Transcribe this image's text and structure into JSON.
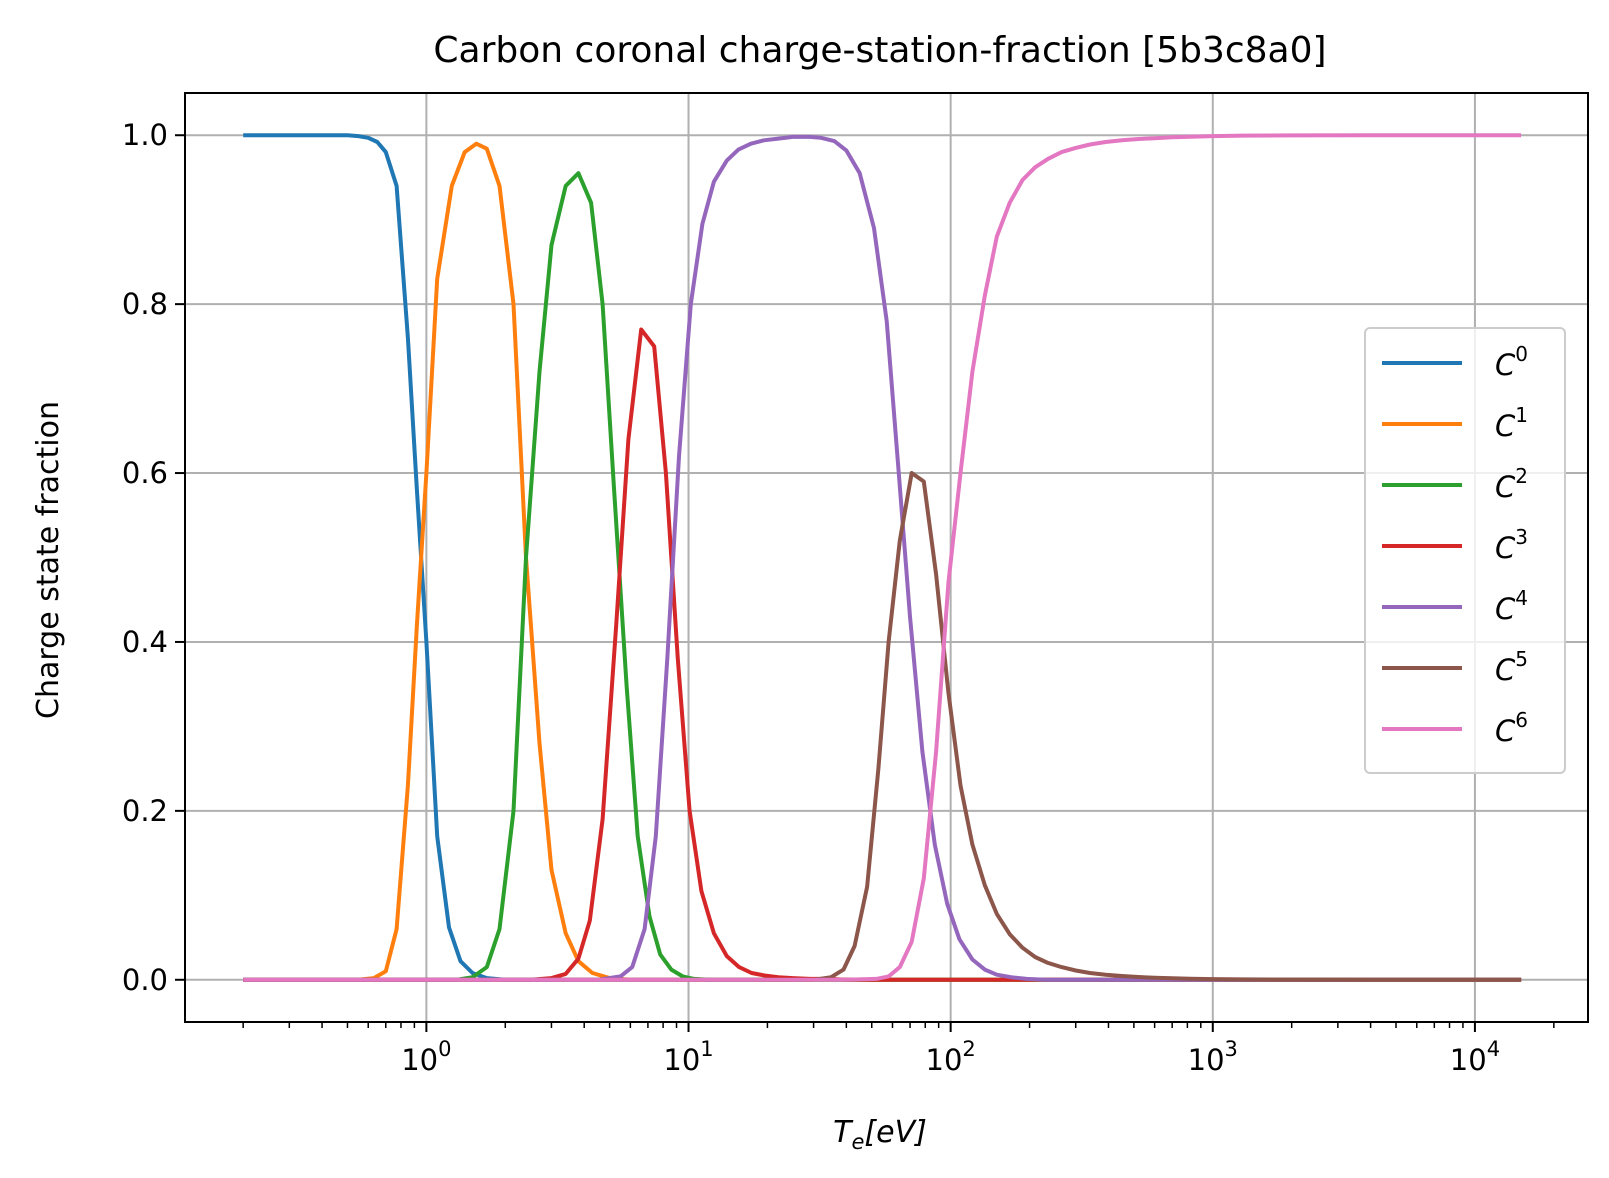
{
  "chart_data": {
    "type": "line",
    "title": "Carbon coronal charge-station-fraction [5b3c8a0]",
    "xlabel": "T_e[eV]",
    "xlabel_main": "T",
    "xlabel_sub": "e",
    "xlabel_unit": "[eV]",
    "ylabel": "Charge state fraction",
    "xscale": "log",
    "xlim": [
      0.12,
      27000
    ],
    "ylim": [
      -0.05,
      1.05
    ],
    "grid": true,
    "legend_position": "center-right",
    "x_ticks": [
      {
        "value": 1,
        "base": "10",
        "exp": "0"
      },
      {
        "value": 10,
        "base": "10",
        "exp": "1"
      },
      {
        "value": 100,
        "base": "10",
        "exp": "2"
      },
      {
        "value": 1000,
        "base": "10",
        "exp": "3"
      },
      {
        "value": 10000,
        "base": "10",
        "exp": "4"
      }
    ],
    "y_ticks": [
      {
        "value": 0.0,
        "label": "0.0"
      },
      {
        "value": 0.2,
        "label": "0.2"
      },
      {
        "value": 0.4,
        "label": "0.4"
      },
      {
        "value": 0.6,
        "label": "0.6"
      },
      {
        "value": 0.8,
        "label": "0.8"
      },
      {
        "value": 1.0,
        "label": "1.0"
      }
    ],
    "series": [
      {
        "name": "C^0",
        "base": "C",
        "sup": "0",
        "color": "#1f77b4",
        "x": [
          0.2,
          0.3,
          0.4,
          0.5,
          0.55,
          0.6,
          0.65,
          0.7,
          0.77,
          0.85,
          0.92,
          1.0,
          1.1,
          1.22,
          1.35,
          1.5,
          1.7,
          2.0,
          3.0,
          15000
        ],
        "y": [
          1.0,
          1.0,
          1.0,
          1.0,
          0.999,
          0.997,
          0.992,
          0.98,
          0.94,
          0.76,
          0.58,
          0.4,
          0.17,
          0.062,
          0.022,
          0.008,
          0.002,
          0.0,
          0.0,
          0.0
        ]
      },
      {
        "name": "C^1",
        "base": "C",
        "sup": "1",
        "color": "#ff7f0e",
        "x": [
          0.2,
          0.55,
          0.63,
          0.7,
          0.77,
          0.85,
          0.92,
          1.0,
          1.1,
          1.25,
          1.4,
          1.55,
          1.7,
          1.9,
          2.15,
          2.4,
          2.7,
          3.0,
          3.4,
          3.8,
          4.3,
          5.0,
          6.0,
          15000
        ],
        "y": [
          0.0,
          0.0,
          0.002,
          0.01,
          0.06,
          0.23,
          0.42,
          0.6,
          0.83,
          0.94,
          0.98,
          0.99,
          0.984,
          0.94,
          0.8,
          0.5,
          0.28,
          0.13,
          0.055,
          0.022,
          0.008,
          0.002,
          0.0,
          0.0
        ]
      },
      {
        "name": "C^2",
        "base": "C",
        "sup": "2",
        "color": "#2ca02c",
        "x": [
          0.2,
          1.3,
          1.5,
          1.7,
          1.9,
          2.15,
          2.4,
          2.7,
          3.0,
          3.4,
          3.8,
          4.25,
          4.7,
          5.2,
          5.8,
          6.4,
          7.1,
          7.8,
          8.6,
          9.5,
          10.5,
          12.0,
          15000
        ],
        "y": [
          0.0,
          0.0,
          0.003,
          0.015,
          0.06,
          0.2,
          0.5,
          0.72,
          0.87,
          0.94,
          0.955,
          0.92,
          0.8,
          0.58,
          0.35,
          0.17,
          0.075,
          0.03,
          0.012,
          0.004,
          0.001,
          0.0,
          0.0
        ]
      },
      {
        "name": "C^3",
        "base": "C",
        "sup": "3",
        "color": "#d62728",
        "x": [
          0.2,
          2.5,
          3.0,
          3.4,
          3.8,
          4.2,
          4.7,
          5.3,
          5.9,
          6.6,
          7.4,
          8.2,
          9.1,
          10.1,
          11.2,
          12.5,
          14.0,
          15.6,
          17.4,
          19.5,
          22.0,
          25.0,
          29.0,
          34.0,
          40.0,
          60.0,
          15000
        ],
        "y": [
          0.0,
          0.0,
          0.002,
          0.007,
          0.025,
          0.07,
          0.19,
          0.42,
          0.64,
          0.77,
          0.75,
          0.6,
          0.38,
          0.2,
          0.105,
          0.055,
          0.028,
          0.015,
          0.008,
          0.005,
          0.003,
          0.002,
          0.001,
          0.001,
          0.0,
          0.0,
          0.0
        ]
      },
      {
        "name": "C^4",
        "base": "C",
        "sup": "4",
        "color": "#9467bd",
        "x": [
          0.2,
          4.5,
          5.5,
          6.1,
          6.8,
          7.5,
          8.3,
          9.2,
          10.2,
          11.3,
          12.5,
          14.0,
          15.5,
          17.3,
          19.4,
          22.0,
          25.0,
          29.0,
          32.0,
          36.0,
          40.0,
          45.0,
          51.0,
          57.0,
          63.0,
          70.0,
          78.0,
          87.0,
          97.0,
          108.0,
          121.0,
          135.0,
          150.0,
          170.0,
          195.0,
          230.0,
          300.0,
          400.0,
          15000
        ],
        "y": [
          0.0,
          0.0,
          0.004,
          0.015,
          0.06,
          0.17,
          0.38,
          0.62,
          0.8,
          0.895,
          0.945,
          0.97,
          0.983,
          0.99,
          0.994,
          0.996,
          0.998,
          0.998,
          0.997,
          0.993,
          0.982,
          0.955,
          0.89,
          0.78,
          0.61,
          0.43,
          0.27,
          0.16,
          0.09,
          0.048,
          0.024,
          0.012,
          0.006,
          0.003,
          0.001,
          0.0,
          0.0,
          0.0,
          0.0
        ]
      },
      {
        "name": "C^5",
        "base": "C",
        "sup": "5",
        "color": "#8c564b",
        "x": [
          0.2,
          30.0,
          35.0,
          39.0,
          43.0,
          48.0,
          53.0,
          58.0,
          64.0,
          71.0,
          79.0,
          88.0,
          98.0,
          109.0,
          121.0,
          135.0,
          150.0,
          168.0,
          188.0,
          210.0,
          235.0,
          265.0,
          300.0,
          340.0,
          390.0,
          450.0,
          520.0,
          600.0,
          700.0,
          820.0,
          1000.0,
          1300.0,
          2000.0,
          4000.0,
          15000
        ],
        "y": [
          0.0,
          0.0,
          0.003,
          0.012,
          0.04,
          0.11,
          0.25,
          0.4,
          0.52,
          0.6,
          0.59,
          0.48,
          0.34,
          0.23,
          0.16,
          0.112,
          0.078,
          0.054,
          0.038,
          0.027,
          0.02,
          0.015,
          0.011,
          0.008,
          0.006,
          0.0045,
          0.0033,
          0.0025,
          0.0018,
          0.0013,
          0.0008,
          0.0005,
          0.0002,
          0.0,
          0.0
        ]
      },
      {
        "name": "C^6",
        "base": "C",
        "sup": "6",
        "color": "#e377c2",
        "x": [
          0.2,
          40.0,
          52.0,
          58.0,
          64.0,
          71.0,
          79.0,
          88.0,
          98.0,
          109.0,
          121.0,
          135.0,
          150.0,
          168.0,
          188.0,
          210.0,
          235.0,
          265.0,
          300.0,
          340.0,
          390.0,
          450.0,
          520.0,
          600.0,
          700.0,
          820.0,
          1000.0,
          1300.0,
          2000.0,
          4000.0,
          15000
        ],
        "y": [
          0.0,
          0.0,
          0.001,
          0.004,
          0.015,
          0.045,
          0.12,
          0.27,
          0.47,
          0.6,
          0.72,
          0.81,
          0.88,
          0.92,
          0.947,
          0.962,
          0.972,
          0.98,
          0.985,
          0.989,
          0.992,
          0.994,
          0.9955,
          0.9965,
          0.9975,
          0.9982,
          0.999,
          0.9995,
          0.9998,
          1.0,
          1.0
        ]
      }
    ]
  }
}
